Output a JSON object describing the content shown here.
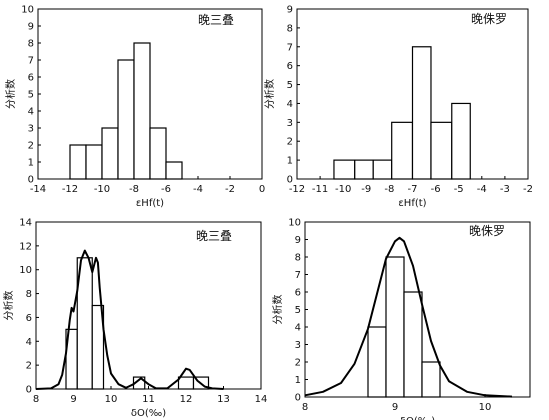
{
  "chart_data": [
    {
      "type": "bar",
      "panel": "top-left",
      "label": "晚三叠",
      "ylabel": "分析数",
      "xlabel": "εHf(t)",
      "xlim": [
        -14,
        0
      ],
      "ylim": [
        0,
        10
      ],
      "xticks": [
        -14,
        -12,
        -10,
        -8,
        -6,
        -4,
        -2,
        0
      ],
      "yticks": [
        0,
        1,
        2,
        3,
        4,
        5,
        6,
        7,
        8,
        9,
        10
      ],
      "bins": [
        {
          "x0": -12,
          "x1": -11,
          "value": 2
        },
        {
          "x0": -11,
          "x1": -10,
          "value": 2
        },
        {
          "x0": -10,
          "x1": -9,
          "value": 3
        },
        {
          "x0": -9,
          "x1": -8,
          "value": 7
        },
        {
          "x0": -8,
          "x1": -7,
          "value": 8
        },
        {
          "x0": -7,
          "x1": -6,
          "value": 3
        },
        {
          "x0": -6,
          "x1": -5,
          "value": 1
        }
      ]
    },
    {
      "type": "bar",
      "panel": "top-right",
      "label": "晚侏罗",
      "ylabel": "分析数",
      "xlabel": "εHf(t)",
      "xlim": [
        -12,
        -2
      ],
      "ylim": [
        0,
        9
      ],
      "xticks": [
        -12,
        -11,
        -10,
        -9,
        -8,
        -7,
        -6,
        -5,
        -4,
        -3,
        -2
      ],
      "yticks": [
        0,
        1,
        2,
        3,
        4,
        5,
        6,
        7,
        8,
        9
      ],
      "bins": [
        {
          "x0": -10.4,
          "x1": -9.5,
          "value": 1
        },
        {
          "x0": -9.5,
          "x1": -8.7,
          "value": 1
        },
        {
          "x0": -8.7,
          "x1": -7.9,
          "value": 1
        },
        {
          "x0": -7.9,
          "x1": -7.0,
          "value": 3
        },
        {
          "x0": -7.0,
          "x1": -6.2,
          "value": 7
        },
        {
          "x0": -6.2,
          "x1": -5.3,
          "value": 3
        },
        {
          "x0": -5.3,
          "x1": -4.5,
          "value": 4
        }
      ]
    },
    {
      "type": "bar",
      "panel": "bottom-left",
      "label": "晚三叠",
      "ylabel": "分析数",
      "xlabel": "δO(‰)",
      "xlim": [
        8,
        14
      ],
      "ylim": [
        0,
        14
      ],
      "xticks": [
        8,
        9,
        10,
        11,
        12,
        13,
        14
      ],
      "yticks": [
        0,
        2,
        4,
        6,
        8,
        10,
        12,
        14
      ],
      "bins": [
        {
          "x0": 8.8,
          "x1": 9.1,
          "value": 5
        },
        {
          "x0": 9.1,
          "x1": 9.5,
          "value": 11
        },
        {
          "x0": 9.5,
          "x1": 9.8,
          "value": 7
        },
        {
          "x0": 10.6,
          "x1": 10.9,
          "value": 1
        },
        {
          "x0": 11.8,
          "x1": 12.2,
          "value": 1
        },
        {
          "x0": 12.2,
          "x1": 12.6,
          "value": 1
        }
      ],
      "curve": [
        [
          8.0,
          0
        ],
        [
          8.4,
          0.05
        ],
        [
          8.6,
          0.4
        ],
        [
          8.7,
          1.2
        ],
        [
          8.8,
          3.0
        ],
        [
          8.9,
          5.8
        ],
        [
          8.95,
          6.8
        ],
        [
          9.0,
          6.5
        ],
        [
          9.1,
          8.2
        ],
        [
          9.2,
          10.8
        ],
        [
          9.3,
          11.6
        ],
        [
          9.4,
          11.0
        ],
        [
          9.5,
          9.8
        ],
        [
          9.6,
          11.0
        ],
        [
          9.65,
          10.6
        ],
        [
          9.7,
          8.5
        ],
        [
          9.8,
          5.0
        ],
        [
          9.9,
          2.8
        ],
        [
          10.0,
          1.3
        ],
        [
          10.2,
          0.4
        ],
        [
          10.4,
          0.1
        ],
        [
          10.6,
          0.4
        ],
        [
          10.8,
          0.9
        ],
        [
          11.0,
          0.4
        ],
        [
          11.2,
          0.05
        ],
        [
          11.5,
          0.05
        ],
        [
          11.8,
          0.8
        ],
        [
          12.0,
          1.7
        ],
        [
          12.1,
          1.6
        ],
        [
          12.3,
          0.7
        ],
        [
          12.5,
          0.2
        ],
        [
          12.7,
          0.05
        ],
        [
          13.0,
          0
        ]
      ]
    },
    {
      "type": "bar",
      "panel": "bottom-right",
      "label": "晚侏罗",
      "ylabel": "分析数",
      "xlabel": "δO(‰)",
      "xlim": [
        8,
        10.5
      ],
      "ylim": [
        0,
        10
      ],
      "xticks": [
        8,
        9,
        10
      ],
      "yticks": [
        0,
        1,
        2,
        3,
        4,
        5,
        6,
        7,
        8,
        9,
        10
      ],
      "bins": [
        {
          "x0": 8.7,
          "x1": 8.9,
          "value": 4
        },
        {
          "x0": 8.9,
          "x1": 9.1,
          "value": 8
        },
        {
          "x0": 9.1,
          "x1": 9.3,
          "value": 6
        },
        {
          "x0": 9.3,
          "x1": 9.5,
          "value": 2
        }
      ],
      "curve": [
        [
          8.0,
          0.1
        ],
        [
          8.2,
          0.3
        ],
        [
          8.4,
          0.8
        ],
        [
          8.55,
          1.9
        ],
        [
          8.7,
          3.9
        ],
        [
          8.8,
          5.9
        ],
        [
          8.9,
          7.9
        ],
        [
          9.0,
          8.9
        ],
        [
          9.05,
          9.1
        ],
        [
          9.1,
          8.9
        ],
        [
          9.2,
          7.5
        ],
        [
          9.3,
          5.3
        ],
        [
          9.4,
          3.2
        ],
        [
          9.5,
          1.8
        ],
        [
          9.6,
          0.9
        ],
        [
          9.8,
          0.3
        ],
        [
          10.0,
          0.1
        ],
        [
          10.3,
          0.02
        ]
      ]
    }
  ]
}
